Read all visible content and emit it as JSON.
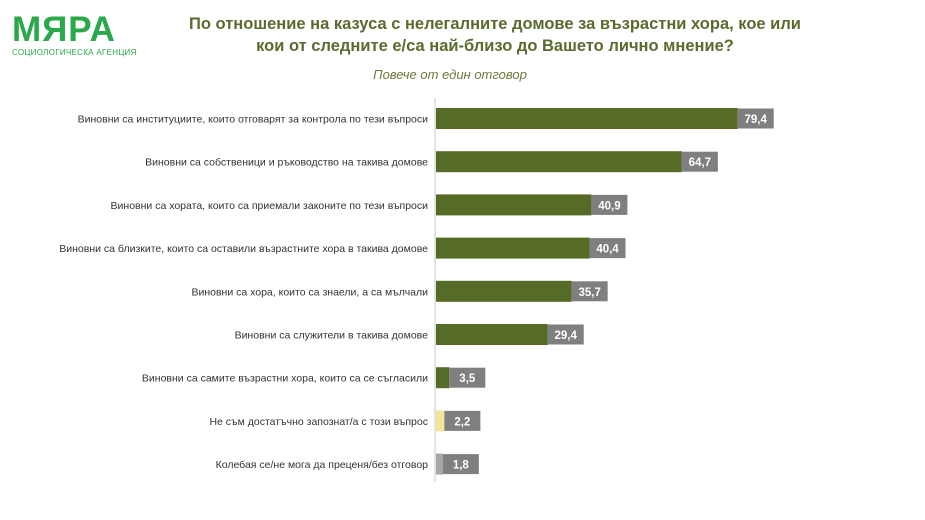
{
  "logo": {
    "name": "МЯРА",
    "tagline": "СОЦИОЛОГИЧЕСКА АГЕНЦИЯ"
  },
  "chart_data": {
    "type": "bar",
    "orientation": "horizontal",
    "title": "По отношение на казуса с нелегалните домове за възрастни хора, кое или кои от следните е/са най-близо до Вашето лично мнение?",
    "subtitle": "Повече от един отговор",
    "categories": [
      "Виновни са институциите, които отговарят за контрола по тези въпроси",
      "Виновни са собственици и ръководство на такива домове",
      "Виновни са хората, които са приемали законите по тези въпроси",
      "Виновни са близките, които са оставили възрастните хора в такива домове",
      "Виновни са хора, които са знаели, а са мълчали",
      "Виновни са служители в такива домове",
      "Виновни са самите възрастни хора, които са се съгласили",
      "Не съм достатъчно запознат/а с този въпрос",
      "Колебая се/не мога да преценя/без отговор"
    ],
    "values": [
      79.4,
      64.7,
      40.9,
      40.4,
      35.7,
      29.4,
      3.5,
      2.2,
      1.8
    ],
    "value_labels": [
      "79,4",
      "64,7",
      "40,9",
      "40,4",
      "35,7",
      "29,4",
      "3,5",
      "2,2",
      "1,8"
    ],
    "bar_colors": [
      "#566b25",
      "#566b25",
      "#566b25",
      "#566b25",
      "#566b25",
      "#566b25",
      "#566b25",
      "#f5e39a",
      "#a6a6a6"
    ],
    "label_box_color": "#7f7f7f",
    "xlim": [
      0,
      100
    ],
    "grid": false,
    "legend": "none"
  }
}
